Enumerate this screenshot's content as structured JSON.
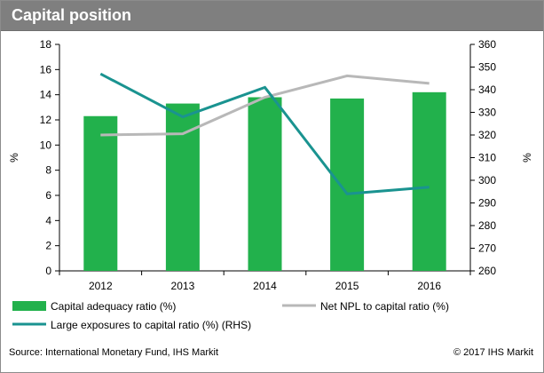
{
  "title": "Capital position",
  "source": "Source: International Monetary Fund, IHS Markit",
  "copyright": "© 2017 IHS Markit",
  "chart_data": {
    "type": "bar",
    "categories": [
      "2012",
      "2013",
      "2014",
      "2015",
      "2016"
    ],
    "y_left": {
      "label": "%",
      "ylim": [
        0,
        18
      ],
      "ticks": [
        0,
        2,
        4,
        6,
        8,
        10,
        12,
        14,
        16,
        18
      ]
    },
    "y_right": {
      "label": "%",
      "ylim": [
        260,
        360
      ],
      "ticks": [
        260,
        270,
        280,
        290,
        300,
        310,
        320,
        330,
        340,
        350,
        360
      ]
    },
    "series": [
      {
        "name": "Capital adequacy ratio (%)",
        "kind": "bar",
        "axis": "left",
        "color": "#22b14c",
        "values": [
          12.3,
          13.3,
          13.8,
          13.7,
          14.2
        ]
      },
      {
        "name": "Net NPL to capital ratio (%)",
        "kind": "line",
        "axis": "left",
        "color": "#b8b8b8",
        "values": [
          10.8,
          10.9,
          13.8,
          15.5,
          14.9
        ]
      },
      {
        "name": "Large exposures to capital ratio (%) (RHS)",
        "kind": "line",
        "axis": "right",
        "color": "#1a9390",
        "values": [
          347,
          328,
          341,
          294,
          297
        ]
      }
    ],
    "grid": false,
    "legend": "bottom"
  }
}
